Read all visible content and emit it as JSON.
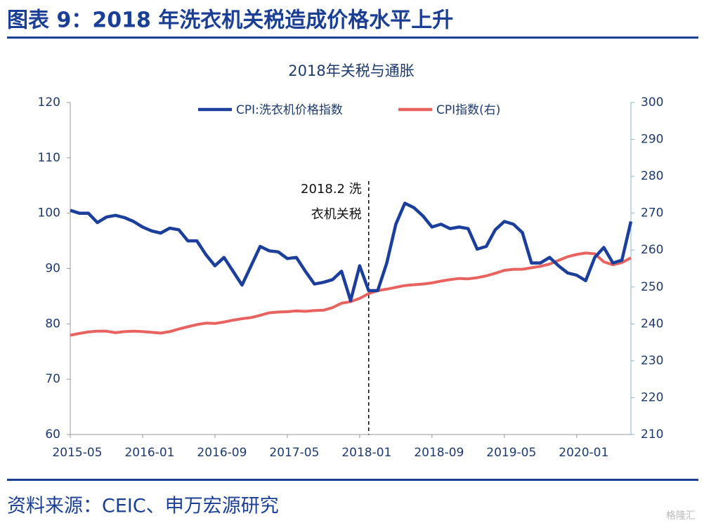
{
  "page_title": "图表 9：2018 年洗衣机关税造成价格水平上升",
  "source": "资料来源：CEIC、申万宏源研究",
  "watermark": "格隆汇",
  "chart_data": {
    "type": "line",
    "title": "2018年关税与通胀",
    "annotation": [
      "2018.2 洗",
      "衣机关税"
    ],
    "x": [
      "2015-05",
      "2015-06",
      "2015-07",
      "2015-08",
      "2015-09",
      "2015-10",
      "2015-11",
      "2015-12",
      "2016-01",
      "2016-02",
      "2016-03",
      "2016-04",
      "2016-05",
      "2016-06",
      "2016-07",
      "2016-08",
      "2016-09",
      "2016-10",
      "2016-11",
      "2016-12",
      "2017-01",
      "2017-02",
      "2017-03",
      "2017-04",
      "2017-05",
      "2017-06",
      "2017-07",
      "2017-08",
      "2017-09",
      "2017-10",
      "2017-11",
      "2017-12",
      "2018-01",
      "2018-02",
      "2018-03",
      "2018-04",
      "2018-05",
      "2018-06",
      "2018-07",
      "2018-08",
      "2018-09",
      "2018-10",
      "2018-11",
      "2018-12",
      "2019-01",
      "2019-02",
      "2019-03",
      "2019-04",
      "2019-05",
      "2019-06",
      "2019-07",
      "2019-08",
      "2019-09",
      "2019-10",
      "2019-11",
      "2019-12",
      "2020-01",
      "2020-02",
      "2020-03",
      "2020-04",
      "2020-05",
      "2020-06",
      "2020-07"
    ],
    "xticks": [
      "2015-05",
      "2016-01",
      "2016-09",
      "2017-05",
      "2018-01",
      "2018-09",
      "2019-05",
      "2020-01"
    ],
    "ylim": [
      60,
      120
    ],
    "yticks": [
      60,
      70,
      80,
      90,
      100,
      110,
      120
    ],
    "y2lim": [
      210,
      300
    ],
    "y2ticks": [
      210,
      220,
      230,
      240,
      250,
      260,
      270,
      280,
      290,
      300
    ],
    "legend": "top",
    "series": [
      {
        "name": "CPI:洗衣机价格指数",
        "color": "#1b3f9a",
        "values": [
          100.5,
          100,
          100,
          98.3,
          99.3,
          99.6,
          99.2,
          98.5,
          97.5,
          96.8,
          96.4,
          97.3,
          97,
          95,
          95,
          92.5,
          90.5,
          92,
          89.5,
          87,
          90.5,
          94,
          93.2,
          93,
          91.8,
          92,
          89.5,
          87.2,
          87.5,
          88,
          89.5,
          84.2,
          90.5,
          86,
          86,
          91,
          98,
          101.8,
          101,
          99.5,
          97.5,
          98,
          97.2,
          97.5,
          97.2,
          93.5,
          94,
          97,
          98.5,
          98,
          96.5,
          91,
          91,
          92,
          90.5,
          89.2,
          88.8,
          87.8,
          92,
          93.8,
          91,
          91.5,
          98.5
        ]
      },
      {
        "name": "CPI指数(右)",
        "color": "#e8625f",
        "axis": "y2",
        "values": [
          236.9,
          237.4,
          237.8,
          238,
          238,
          237.6,
          237.9,
          238,
          237.9,
          237.7,
          237.5,
          237.9,
          238.6,
          239.2,
          239.8,
          240.2,
          240.1,
          240.5,
          241,
          241.4,
          241.7,
          242.3,
          243,
          243.2,
          243.3,
          243.5,
          243.4,
          243.6,
          243.7,
          244.4,
          245.6,
          246,
          246.9,
          248.2,
          249,
          249.4,
          249.9,
          250.4,
          250.6,
          250.8,
          251.1,
          251.6,
          252,
          252.3,
          252.2,
          252.5,
          253,
          253.7,
          254.5,
          254.8,
          254.8,
          255.2,
          255.6,
          256.2,
          257.2,
          258.2,
          258.8,
          259.2,
          259,
          256.8,
          256,
          256.6,
          257.9
        ]
      }
    ]
  }
}
